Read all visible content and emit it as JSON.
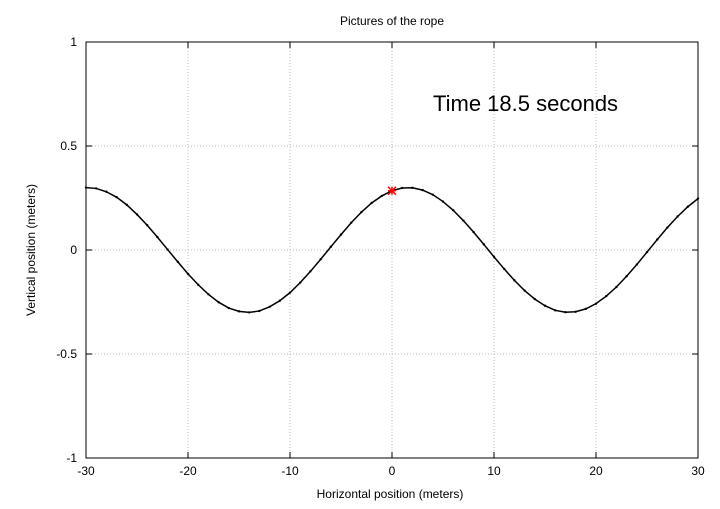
{
  "chart_data": {
    "type": "line",
    "title": "Pictures of the rope",
    "xlabel": "Horizontal position (meters)",
    "ylabel": "Vertical position (meters)",
    "xlim": [
      -30,
      30
    ],
    "ylim": [
      -1,
      1
    ],
    "xticks": [
      "-30",
      "-20",
      "-10",
      "0",
      "10",
      "20",
      "30"
    ],
    "yticks": [
      "1",
      "0.5",
      "0",
      "-0.5",
      "-1"
    ],
    "grid": true,
    "annotation": "Time 18.5 seconds",
    "line_color": "#000000",
    "marker_color": "#ff0000",
    "marker_point": {
      "x": 0,
      "y": 0.285
    },
    "series": [
      {
        "x": [
          -30,
          -29,
          -28,
          -27,
          -26,
          -25,
          -24,
          -23,
          -22,
          -21,
          -20,
          -19,
          -18,
          -17,
          -16,
          -15,
          -14,
          -13,
          -12,
          -11,
          -10,
          -9,
          -8,
          -7,
          -6,
          -5,
          -4,
          -3,
          -2,
          -1,
          0,
          1,
          2,
          3,
          4,
          5,
          6,
          7,
          8,
          9,
          10,
          11,
          12,
          13,
          14,
          15,
          16,
          17,
          18,
          19,
          20,
          21,
          22,
          23,
          24,
          25,
          26,
          27,
          28,
          29,
          30
        ],
        "y": [
          0.3,
          0.296,
          0.28,
          0.254,
          0.217,
          0.171,
          0.119,
          0.062,
          0.002,
          -0.057,
          -0.115,
          -0.167,
          -0.213,
          -0.251,
          -0.279,
          -0.295,
          -0.3,
          -0.293,
          -0.273,
          -0.244,
          -0.205,
          -0.157,
          -0.103,
          -0.045,
          0.015,
          0.074,
          0.131,
          0.182,
          0.226,
          0.26,
          0.285,
          0.298,
          0.299,
          0.288,
          0.266,
          0.233,
          0.191,
          0.141,
          0.086,
          0.027,
          -0.033,
          -0.091,
          -0.146,
          -0.195,
          -0.236,
          -0.268,
          -0.29,
          -0.299,
          -0.297,
          -0.283,
          -0.258,
          -0.222,
          -0.178,
          -0.126,
          -0.07,
          -0.01,
          0.05,
          0.108,
          0.161,
          0.208,
          0.247
        ]
      }
    ]
  }
}
